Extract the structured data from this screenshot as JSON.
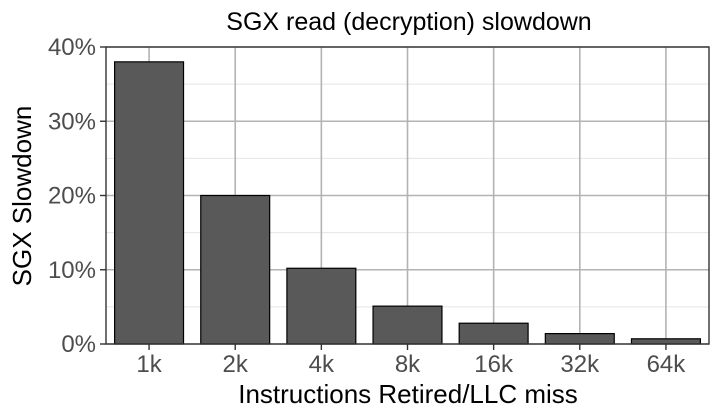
{
  "chart_data": {
    "type": "bar",
    "title": "SGX read (decryption) slowdown",
    "xlabel": "Instructions Retired/LLC miss",
    "ylabel": "SGX Slowdown",
    "categories": [
      "1k",
      "2k",
      "4k",
      "8k",
      "16k",
      "32k",
      "64k"
    ],
    "values": [
      38,
      20,
      10.2,
      5.1,
      2.8,
      1.4,
      0.7
    ],
    "ylim": [
      0,
      40
    ],
    "yticks": [
      0,
      10,
      20,
      30,
      40
    ],
    "ytick_labels": [
      "0%",
      "10%",
      "20%",
      "30%",
      "40%"
    ],
    "grid": true,
    "legend": "none",
    "bar_color": "#595959"
  }
}
